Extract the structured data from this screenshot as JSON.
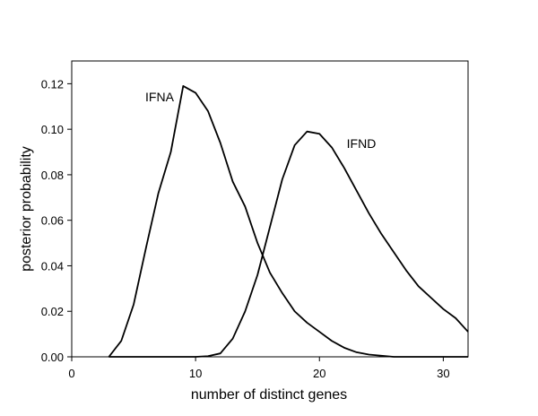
{
  "chart_data": {
    "type": "line",
    "x_label": "number of distinct genes",
    "y_label": "posterior probability",
    "x": [
      3,
      4,
      5,
      6,
      7,
      8,
      9,
      10,
      11,
      12,
      13,
      14,
      15,
      16,
      17,
      18,
      19,
      20,
      21,
      22,
      23,
      24,
      25,
      26,
      27,
      28,
      29,
      30,
      31,
      32
    ],
    "series": [
      {
        "name": "IFNA",
        "color": "#000000",
        "values": [
          0,
          0.007,
          0.023,
          0.048,
          0.072,
          0.09,
          0.119,
          0.116,
          0.108,
          0.094,
          0.077,
          0.066,
          0.05,
          0.037,
          0.028,
          0.02,
          0.015,
          0.011,
          0.007,
          0.004,
          0.002,
          0.001,
          0.0005,
          0,
          0,
          0,
          0,
          0,
          0,
          0
        ]
      },
      {
        "name": "IFND",
        "color": "#000000",
        "values": [
          0,
          0,
          0,
          0,
          0,
          0,
          0,
          0,
          0.0003,
          0.0015,
          0.008,
          0.02,
          0.036,
          0.057,
          0.078,
          0.093,
          0.099,
          0.098,
          0.092,
          0.083,
          0.073,
          0.063,
          0.054,
          0.046,
          0.038,
          0.031,
          0.026,
          0.021,
          0.017,
          0.011
        ]
      }
    ],
    "xlim": [
      0,
      32
    ],
    "ylim": [
      0,
      0.13
    ],
    "xticks": [
      0,
      10,
      20,
      30
    ],
    "yticks": [
      {
        "value": 0,
        "label": "0.00"
      },
      {
        "value": 0.02,
        "label": "0.02"
      },
      {
        "value": 0.04,
        "label": "0.04"
      },
      {
        "value": 0.06,
        "label": "0.06"
      },
      {
        "value": 0.08,
        "label": "0.08"
      },
      {
        "value": 0.1,
        "label": "0.10"
      },
      {
        "value": 0.12,
        "label": "0.12"
      }
    ],
    "grid": false
  }
}
